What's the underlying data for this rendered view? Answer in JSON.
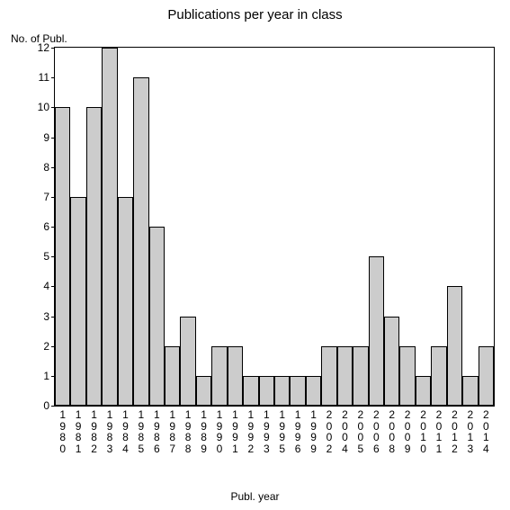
{
  "chart": {
    "type": "bar",
    "title": "Publications per year in class",
    "title_fontsize": 15,
    "ylabel": "No. of Publ.",
    "xlabel": "Publ. year",
    "label_fontsize": 12,
    "categories": [
      "1980",
      "1981",
      "1982",
      "1983",
      "1984",
      "1985",
      "1986",
      "1987",
      "1988",
      "1989",
      "1990",
      "1991",
      "1992",
      "1993",
      "1995",
      "1996",
      "1999",
      "2002",
      "2004",
      "2005",
      "2006",
      "2008",
      "2009",
      "2010",
      "2011",
      "2012",
      "2013",
      "2014"
    ],
    "values": [
      10,
      7,
      10,
      12,
      7,
      11,
      6,
      2,
      3,
      1,
      2,
      2,
      1,
      1,
      1,
      1,
      1,
      2,
      2,
      2,
      5,
      3,
      2,
      1,
      2,
      4,
      1,
      2
    ],
    "bar_color": "#cccccc",
    "bar_border_color": "#000000",
    "background_color": "#ffffff",
    "ylim": [
      0,
      12
    ],
    "yticks": [
      0,
      1,
      2,
      3,
      4,
      5,
      6,
      7,
      8,
      9,
      10,
      11,
      12
    ],
    "bar_width": 1.0,
    "axis_color": "#000000",
    "tick_fontsize": 12
  }
}
